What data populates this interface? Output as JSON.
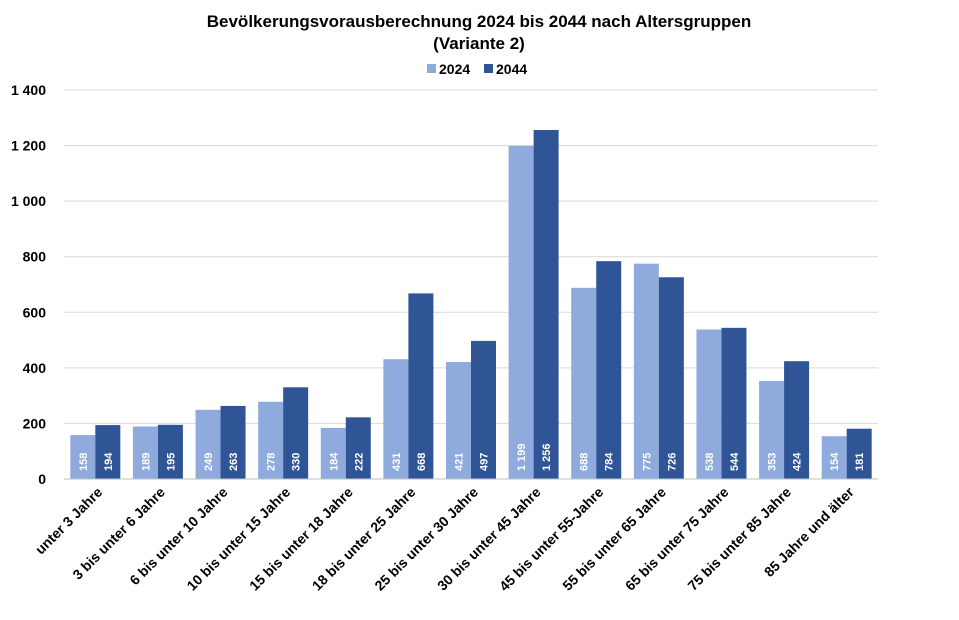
{
  "chart_data": {
    "type": "bar",
    "title": "Bevölkerungsvorausberechnung 2024 bis 2044 nach Altersgruppen",
    "subtitle": "(Variante 2)",
    "categories": [
      "unter 3 Jahre",
      "3 bis unter 6 Jahre",
      "6 bis unter 10 Jahre",
      "10 bis unter 15 Jahre",
      "15 bis unter 18 Jahre",
      "18 bis unter 25 Jahre",
      "25 bis unter 30 Jahre",
      "30 bis unter 45 Jahre",
      "45 bis unter 55-Jahre",
      "55 bis unter 65 Jahre",
      "65 bis unter 75 Jahre",
      "75 bis unter 85 Jahre",
      "85 Jahre und älter"
    ],
    "series": [
      {
        "name": "2024",
        "color": "#8faadc",
        "values": [
          158,
          189,
          249,
          278,
          184,
          431,
          421,
          1199,
          688,
          775,
          538,
          353,
          154
        ],
        "labels": [
          "158",
          "189",
          "249",
          "278",
          "184",
          "431",
          "421",
          "1 199",
          "688",
          "775",
          "538",
          "353",
          "154"
        ]
      },
      {
        "name": "2044",
        "color": "#2f5597",
        "values": [
          194,
          195,
          263,
          330,
          222,
          668,
          497,
          1256,
          784,
          726,
          544,
          424,
          181
        ],
        "labels": [
          "194",
          "195",
          "263",
          "330",
          "222",
          "668",
          "497",
          "1 256",
          "784",
          "726",
          "544",
          "424",
          "181"
        ]
      }
    ],
    "ylim": [
      0,
      1400
    ],
    "yticks": [
      0,
      200,
      400,
      600,
      800,
      1000,
      1200,
      1400
    ],
    "ytick_labels": [
      "0",
      "200",
      "400",
      "600",
      "800",
      "1 000",
      "1 200",
      "1 400"
    ],
    "xlabel": "",
    "ylabel": "",
    "grid": true,
    "legend_position": "top-center"
  }
}
